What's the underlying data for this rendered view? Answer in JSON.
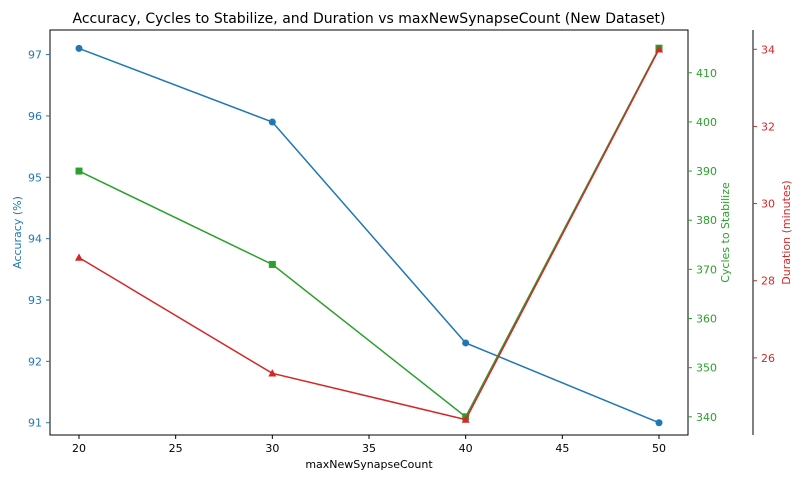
{
  "chart_data": {
    "type": "line",
    "title": "Accuracy, Cycles to Stabilize, and Duration vs maxNewSynapseCount (New Dataset)",
    "xlabel": "maxNewSynapseCount",
    "x": [
      20,
      30,
      40,
      50
    ],
    "xlim": [
      18.5,
      51.5
    ],
    "xticks": [
      20,
      25,
      30,
      35,
      40,
      45,
      50
    ],
    "grid": false,
    "series": [
      {
        "name": "Accuracy (%)",
        "axis": "left",
        "color": "#1f77b4",
        "marker": "circle",
        "values": [
          97.1,
          95.9,
          92.3,
          91.0
        ],
        "ylabel": "Accuracy (%)",
        "ylim": [
          90.8,
          97.4
        ],
        "yticks": [
          91,
          92,
          93,
          94,
          95,
          96,
          97
        ]
      },
      {
        "name": "Cycles to Stabilize",
        "axis": "right",
        "color": "#2ca02c",
        "marker": "square",
        "values": [
          390,
          371,
          340,
          415
        ],
        "ylabel": "Cycles to Stabilize",
        "ylim": [
          336.3,
          418.7
        ],
        "yticks": [
          340,
          350,
          360,
          370,
          380,
          390,
          400,
          410
        ]
      },
      {
        "name": "Duration (minutes)",
        "axis": "right-outer",
        "color": "#d62728",
        "marker": "triangle",
        "values": [
          28.6,
          25.6,
          24.4,
          34.0
        ],
        "ylabel": "Duration (minutes)",
        "ylim": [
          24.0,
          34.5
        ],
        "yticks": [
          26,
          28,
          30,
          32,
          34
        ]
      }
    ]
  }
}
